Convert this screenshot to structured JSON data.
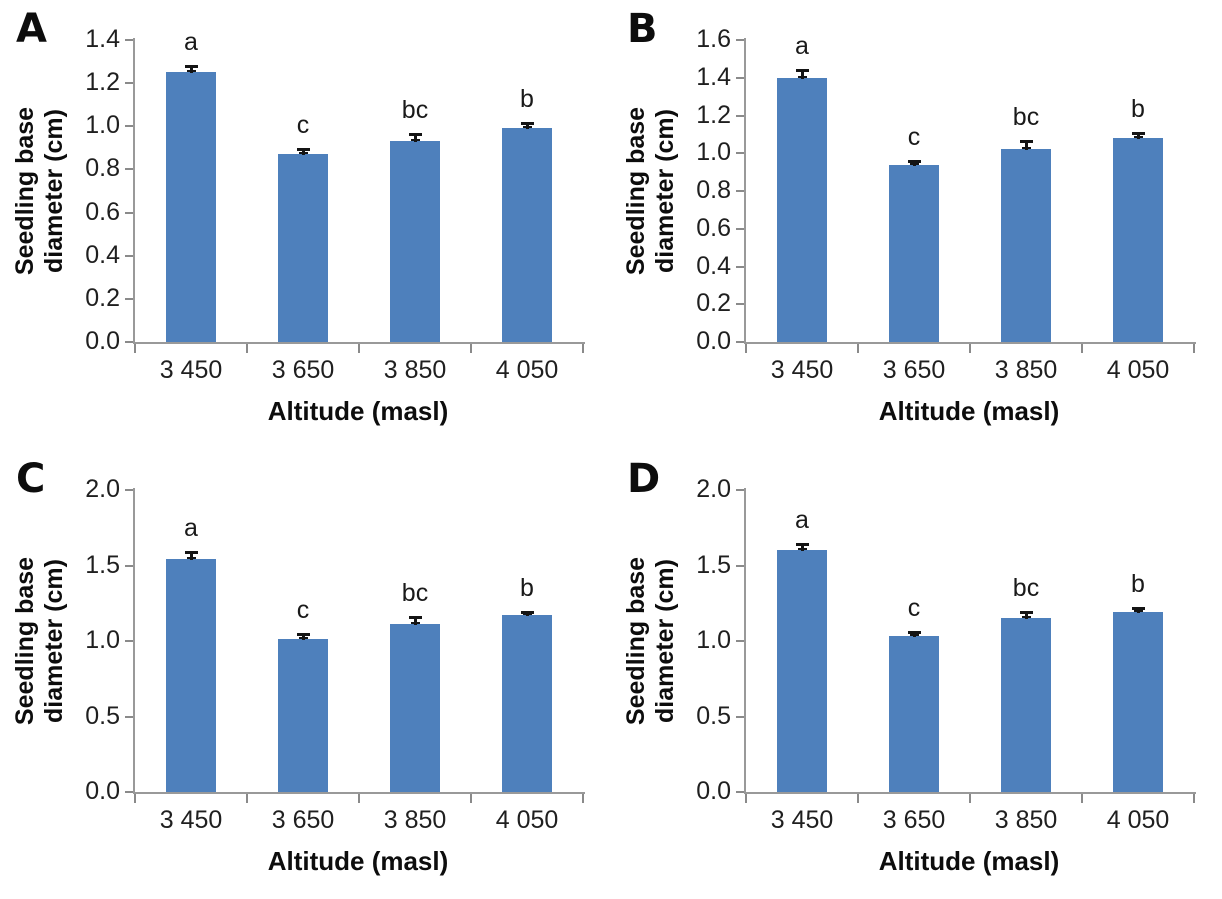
{
  "figure": {
    "background": "#ffffff",
    "bar_color": "#4e80bc",
    "axis_color": "#999999",
    "tick_color": "#8a8a8a",
    "error_bar_color": "#141414",
    "text_color": "#1f1f1f",
    "heading_color": "#0d0d0d"
  },
  "chart_data": [
    {
      "type": "bar",
      "panel_label": "A",
      "title": "",
      "xlabel": "Altitude (masl)",
      "ylabel": "Seedling base diameter (cm)",
      "ylabel_lines": [
        "Seedling base",
        "diameter (cm)"
      ],
      "categories": [
        "3 450",
        "3 650",
        "3 850",
        "4 050"
      ],
      "values": [
        1.25,
        0.87,
        0.93,
        0.99
      ],
      "errors": [
        0.03,
        0.025,
        0.035,
        0.025
      ],
      "sig_letters": [
        "a",
        "c",
        "bc",
        "b"
      ],
      "ylim": [
        0,
        1.4
      ],
      "ytick_step": 0.2,
      "yticks": [
        "0.0",
        "0.2",
        "0.4",
        "0.6",
        "0.8",
        "1.0",
        "1.2",
        "1.4"
      ],
      "grid": false,
      "legend": "none"
    },
    {
      "type": "bar",
      "panel_label": "B",
      "title": "",
      "xlabel": "Altitude (masl)",
      "ylabel": "Seedling base diameter (cm)",
      "ylabel_lines": [
        "Seedling base",
        "diameter (cm)"
      ],
      "categories": [
        "3 450",
        "3 650",
        "3 850",
        "4 050"
      ],
      "values": [
        1.4,
        0.94,
        1.02,
        1.08
      ],
      "errors": [
        0.04,
        0.02,
        0.045,
        0.025
      ],
      "sig_letters": [
        "a",
        "c",
        "bc",
        "b"
      ],
      "ylim": [
        0,
        1.6
      ],
      "ytick_step": 0.2,
      "yticks": [
        "0.0",
        "0.2",
        "0.4",
        "0.6",
        "0.8",
        "1.0",
        "1.2",
        "1.4",
        "1.6"
      ],
      "grid": false,
      "legend": "none"
    },
    {
      "type": "bar",
      "panel_label": "C",
      "title": "",
      "xlabel": "Altitude (masl)",
      "ylabel": "Seedling base diameter (cm)",
      "ylabel_lines": [
        "Seedling base",
        "diameter (cm)"
      ],
      "categories": [
        "3 450",
        "3 650",
        "3 850",
        "4 050"
      ],
      "values": [
        1.54,
        1.01,
        1.11,
        1.17
      ],
      "errors": [
        0.05,
        0.035,
        0.05,
        0.02
      ],
      "sig_letters": [
        "a",
        "c",
        "bc",
        "b"
      ],
      "ylim": [
        0,
        2.0
      ],
      "ytick_step": 0.5,
      "yticks": [
        "0.0",
        "0.5",
        "1.0",
        "1.5",
        "2.0"
      ],
      "grid": false,
      "legend": "none"
    },
    {
      "type": "bar",
      "panel_label": "D",
      "title": "",
      "xlabel": "Altitude (masl)",
      "ylabel": "Seedling base diameter (cm)",
      "ylabel_lines": [
        "Seedling base",
        "diameter (cm)"
      ],
      "categories": [
        "3 450",
        "3 650",
        "3 850",
        "4 050"
      ],
      "values": [
        1.6,
        1.03,
        1.15,
        1.19
      ],
      "errors": [
        0.04,
        0.03,
        0.04,
        0.03
      ],
      "sig_letters": [
        "a",
        "c",
        "bc",
        "b"
      ],
      "ylim": [
        0,
        2.0
      ],
      "ytick_step": 0.5,
      "yticks": [
        "0.0",
        "0.5",
        "1.0",
        "1.5",
        "2.0"
      ],
      "grid": false,
      "legend": "none"
    }
  ]
}
